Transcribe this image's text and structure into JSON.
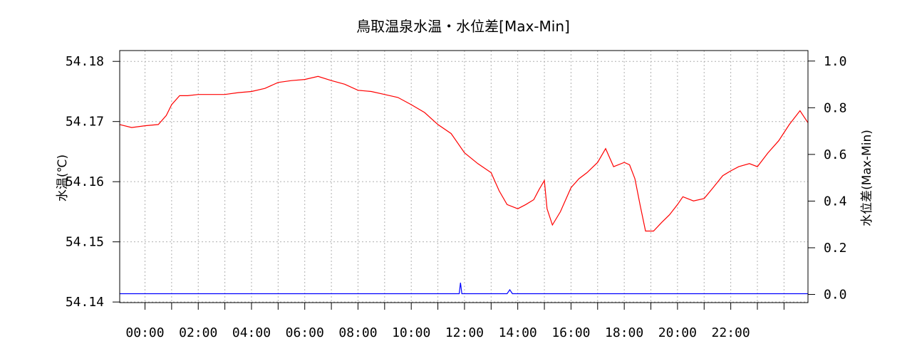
{
  "chart_data": {
    "type": "line",
    "title": "鳥取温泉水温・水位差[Max-Min]",
    "ylabel_left": "水温(℃)",
    "ylabel_right": "水位差(Max-Min)",
    "x_range_hours": [
      -0.95,
      24.9
    ],
    "xticks": [
      "00:00",
      "02:00",
      "04:00",
      "06:00",
      "08:00",
      "10:00",
      "12:00",
      "14:00",
      "16:00",
      "18:00",
      "20:00",
      "22:00"
    ],
    "xtick_hours": [
      0,
      2,
      4,
      6,
      8,
      10,
      12,
      14,
      16,
      18,
      20,
      22
    ],
    "yticks_left": [
      "54.14",
      "54.15",
      "54.16",
      "54.17",
      "54.18"
    ],
    "ylim_left": [
      54.1399,
      54.1818
    ],
    "yticks_right": [
      "0.0",
      "0.2",
      "0.4",
      "0.6",
      "0.8",
      "1.0"
    ],
    "ylim_right": [
      -0.035,
      1.045
    ],
    "grid": true,
    "series": [
      {
        "axis": "left",
        "color": "#ff0000",
        "points": [
          [
            -0.95,
            54.1695
          ],
          [
            -0.5,
            54.169
          ],
          [
            0.0,
            54.1693
          ],
          [
            0.5,
            54.1695
          ],
          [
            0.8,
            54.171
          ],
          [
            1.0,
            54.1728
          ],
          [
            1.3,
            54.1743
          ],
          [
            1.6,
            54.1743
          ],
          [
            2.0,
            54.1745
          ],
          [
            2.5,
            54.1745
          ],
          [
            3.0,
            54.1745
          ],
          [
            3.5,
            54.1748
          ],
          [
            4.0,
            54.175
          ],
          [
            4.5,
            54.1755
          ],
          [
            5.0,
            54.1765
          ],
          [
            5.5,
            54.1768
          ],
          [
            6.0,
            54.177
          ],
          [
            6.5,
            54.1775
          ],
          [
            7.0,
            54.1768
          ],
          [
            7.5,
            54.1762
          ],
          [
            8.0,
            54.1752
          ],
          [
            8.5,
            54.175
          ],
          [
            9.0,
            54.1745
          ],
          [
            9.5,
            54.174
          ],
          [
            10.0,
            54.1728
          ],
          [
            10.5,
            54.1715
          ],
          [
            11.0,
            54.1695
          ],
          [
            11.5,
            54.168
          ],
          [
            12.0,
            54.1648
          ],
          [
            12.5,
            54.163
          ],
          [
            13.0,
            54.1615
          ],
          [
            13.3,
            54.1585
          ],
          [
            13.6,
            54.1562
          ],
          [
            14.0,
            54.1555
          ],
          [
            14.3,
            54.1562
          ],
          [
            14.6,
            54.157
          ],
          [
            14.8,
            54.1587
          ],
          [
            15.0,
            54.1602
          ],
          [
            15.1,
            54.1555
          ],
          [
            15.3,
            54.1528
          ],
          [
            15.6,
            54.155
          ],
          [
            16.0,
            54.159
          ],
          [
            16.3,
            54.1605
          ],
          [
            16.6,
            54.1615
          ],
          [
            17.0,
            54.1632
          ],
          [
            17.3,
            54.1655
          ],
          [
            17.6,
            54.1625
          ],
          [
            18.0,
            54.1632
          ],
          [
            18.2,
            54.1628
          ],
          [
            18.4,
            54.1605
          ],
          [
            18.6,
            54.156
          ],
          [
            18.8,
            54.1518
          ],
          [
            19.1,
            54.1518
          ],
          [
            19.4,
            54.1532
          ],
          [
            19.7,
            54.1545
          ],
          [
            20.0,
            54.1562
          ],
          [
            20.2,
            54.1575
          ],
          [
            20.6,
            54.1568
          ],
          [
            21.0,
            54.1572
          ],
          [
            21.3,
            54.1588
          ],
          [
            21.7,
            54.161
          ],
          [
            22.0,
            54.1618
          ],
          [
            22.3,
            54.1625
          ],
          [
            22.7,
            54.163
          ],
          [
            23.0,
            54.1625
          ],
          [
            23.4,
            54.1648
          ],
          [
            23.8,
            54.1668
          ],
          [
            24.2,
            54.1695
          ],
          [
            24.6,
            54.1718
          ],
          [
            24.9,
            54.1698
          ]
        ]
      },
      {
        "axis": "right",
        "color": "#0000ff",
        "points": [
          [
            -0.95,
            0.003
          ],
          [
            11.8,
            0.003
          ],
          [
            11.85,
            0.05
          ],
          [
            11.9,
            0.003
          ],
          [
            13.6,
            0.003
          ],
          [
            13.7,
            0.02
          ],
          [
            13.8,
            0.003
          ],
          [
            24.9,
            0.003
          ]
        ]
      }
    ]
  }
}
